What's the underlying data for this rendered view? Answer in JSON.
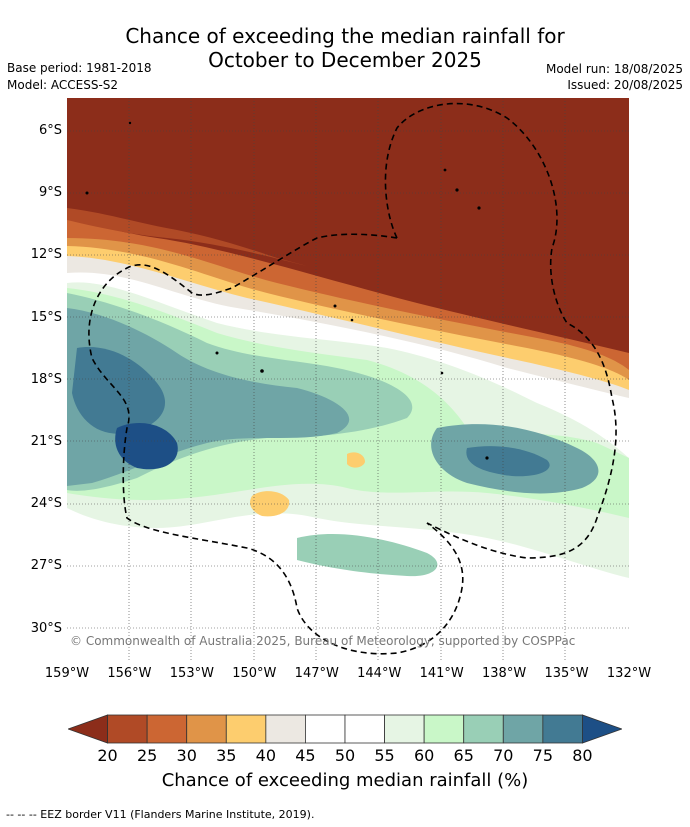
{
  "title_line1": "Chance of exceeding the median rainfall for",
  "title_line2": "October to December 2025",
  "base_period": "Base period: 1981-2018",
  "model": "Model: ACCESS-S2",
  "model_run": "Model run: 18/08/2025",
  "issued": "Issued: 20/08/2025",
  "copyright": "© Commonwealth of Australia 2025, Bureau of Meteorology, supported by COSPPac",
  "lon_ticks": [
    "159°W",
    "156°W",
    "153°W",
    "150°W",
    "147°W",
    "144°W",
    "141°W",
    "138°W",
    "135°W",
    "132°W"
  ],
  "lat_ticks": [
    "6°S",
    "9°S",
    "12°S",
    "15°S",
    "18°S",
    "21°S",
    "24°S",
    "27°S",
    "30°S"
  ],
  "colorbar": {
    "label": "Chance of exceeding median rainfall (%)",
    "ticks": [
      "20",
      "25",
      "30",
      "35",
      "40",
      "45",
      "50",
      "55",
      "60",
      "65",
      "70",
      "75",
      "80"
    ],
    "colors": [
      "#8c2d1a",
      "#b04a26",
      "#cc6633",
      "#e09448",
      "#fdcd6e",
      "#ece8e2",
      "#ffffff",
      "#ffffff",
      "#e6f5e4",
      "#c9f7c8",
      "#99cfb6",
      "#6fa5a6",
      "#427a93",
      "#1d4f86"
    ]
  },
  "footer": "--  --  -- EEZ border V11 (Flanders Marine Institute, 2019)."
}
